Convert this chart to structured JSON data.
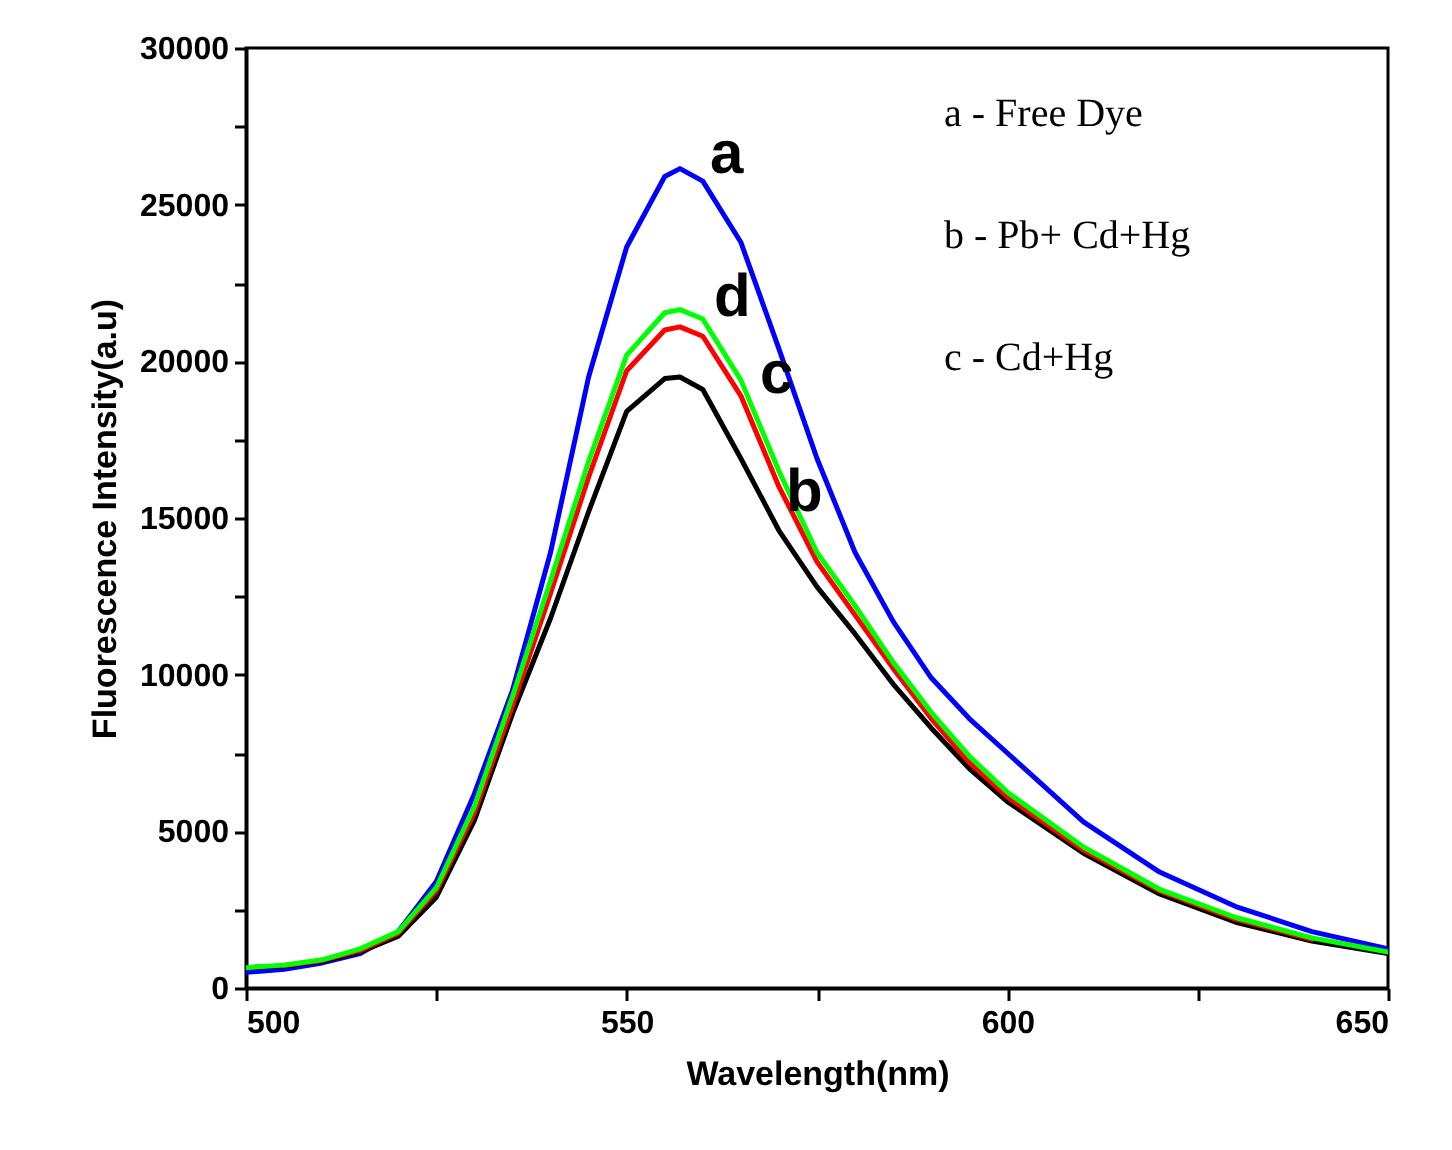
{
  "chart_data": {
    "type": "line",
    "xlabel": "Wavelength(nm)",
    "ylabel": "Fluorescence Intensity(a.u)",
    "x": [
      500,
      505,
      510,
      515,
      520,
      525,
      530,
      535,
      540,
      545,
      550,
      555,
      557,
      560,
      565,
      570,
      575,
      580,
      585,
      590,
      595,
      600,
      610,
      620,
      630,
      640,
      650
    ],
    "series": [
      {
        "name": "a",
        "color": "#0000ff",
        "values": [
          500,
          600,
          800,
          1100,
          1800,
          3400,
          6200,
          9500,
          13900,
          19500,
          23650,
          25900,
          26150,
          25750,
          23800,
          20400,
          16900,
          13900,
          11700,
          9900,
          8600,
          7500,
          5300,
          3700,
          2600,
          1800,
          1250
        ]
      },
      {
        "name": "b",
        "color": "#000000",
        "values": [
          650,
          700,
          850,
          1150,
          1650,
          2900,
          5350,
          8750,
          11800,
          15200,
          18400,
          19450,
          19500,
          19100,
          16900,
          14600,
          12800,
          11300,
          9700,
          8300,
          7000,
          5950,
          4300,
          3000,
          2100,
          1500,
          1100
        ]
      },
      {
        "name": "c",
        "color": "#ff0000",
        "values": [
          null,
          720,
          880,
          1200,
          1750,
          3100,
          5600,
          9000,
          12600,
          16300,
          19700,
          21000,
          21100,
          20800,
          18900,
          16000,
          13600,
          11900,
          10200,
          8600,
          7200,
          6100,
          4400,
          3100,
          2200,
          1550,
          null
        ]
      },
      {
        "name": "d",
        "color": "#00ff00",
        "values": [
          650,
          730,
          900,
          1250,
          1800,
          3200,
          5800,
          9300,
          13000,
          16800,
          20200,
          21550,
          21650,
          21350,
          19400,
          16500,
          13900,
          12200,
          10400,
          8800,
          7400,
          6250,
          4500,
          3150,
          2250,
          1600,
          1150
        ]
      }
    ],
    "xlim": [
      500,
      650
    ],
    "ylim": [
      0,
      30000
    ],
    "xticks": [
      500,
      {
        "value": 525,
        "label": null
      },
      550,
      {
        "value": 575,
        "label": null
      },
      600,
      {
        "value": 625,
        "label": null
      },
      650
    ],
    "yticks": [
      0,
      {
        "value": 2500,
        "label": null
      },
      5000,
      {
        "value": 7500,
        "label": null
      },
      10000,
      {
        "value": 12500,
        "label": null
      },
      15000,
      {
        "value": 17500,
        "label": null
      },
      20000,
      {
        "value": 22500,
        "label": null
      },
      25000,
      {
        "value": 27500,
        "label": null
      },
      30000
    ],
    "grid": false,
    "legend": false,
    "annotations": [
      "a - Free Dye",
      "b - Pb+ Cd+Hg",
      "c -  Cd+Hg"
    ]
  }
}
